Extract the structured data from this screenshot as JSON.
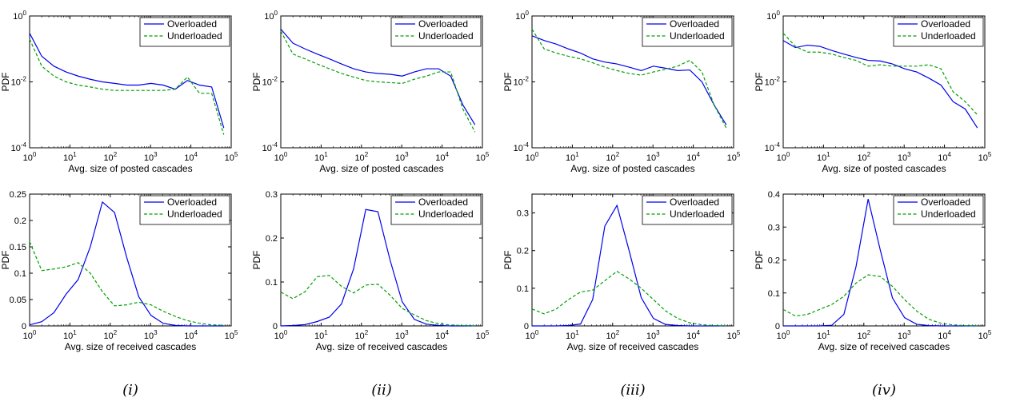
{
  "colors": {
    "overloaded": "#0000ee",
    "underloaded": "#00a000"
  },
  "column_labels": [
    "(i)",
    "(ii)",
    "(iii)",
    "(iv)"
  ],
  "chart_data": [
    {
      "type": "line",
      "xscale": "log",
      "yscale": "log",
      "xlabel": "Avg. size of posted cascades",
      "ylabel": "PDF",
      "xlim": [
        1,
        100000
      ],
      "ylim": [
        0.0001,
        1
      ],
      "xticks": [
        "10^0",
        "10^1",
        "10^2",
        "10^3",
        "10^4",
        "10^5"
      ],
      "yticks": [
        "10^-4",
        "10^-2",
        "10^0"
      ],
      "legend": "top-right",
      "series": [
        {
          "name": "Overloaded",
          "style": "solid",
          "x": [
            1,
            2,
            4,
            8,
            16,
            32,
            64,
            128,
            256,
            512,
            1024,
            2048,
            4096,
            8192,
            16384,
            32768,
            65536
          ],
          "y": [
            0.3,
            0.06,
            0.03,
            0.02,
            0.015,
            0.012,
            0.01,
            0.009,
            0.008,
            0.008,
            0.009,
            0.008,
            0.006,
            0.011,
            0.008,
            0.007,
            0.0004
          ]
        },
        {
          "name": "Underloaded",
          "style": "dashed",
          "x": [
            1,
            2,
            4,
            8,
            16,
            32,
            64,
            128,
            256,
            512,
            1024,
            2048,
            4096,
            8192,
            16384,
            32768,
            65536
          ],
          "y": [
            0.2,
            0.03,
            0.015,
            0.01,
            0.008,
            0.007,
            0.006,
            0.0055,
            0.0055,
            0.0055,
            0.0055,
            0.0055,
            0.006,
            0.014,
            0.0045,
            0.0045,
            0.00025
          ]
        }
      ]
    },
    {
      "type": "line",
      "xscale": "log",
      "yscale": "log",
      "xlabel": "Avg. size of posted cascades",
      "ylabel": "PDF",
      "xlim": [
        1,
        100000
      ],
      "ylim": [
        0.0001,
        1
      ],
      "xticks": [
        "10^0",
        "10^1",
        "10^2",
        "10^3",
        "10^4",
        "10^5"
      ],
      "yticks": [
        "10^-4",
        "10^-2",
        "10^0"
      ],
      "legend": "top-right",
      "series": [
        {
          "name": "Overloaded",
          "style": "solid",
          "x": [
            1,
            2,
            4,
            8,
            16,
            32,
            64,
            128,
            256,
            512,
            1024,
            2048,
            4096,
            8192,
            16384,
            32768,
            65536
          ],
          "y": [
            0.4,
            0.15,
            0.1,
            0.07,
            0.05,
            0.035,
            0.025,
            0.02,
            0.018,
            0.017,
            0.015,
            0.02,
            0.025,
            0.025,
            0.015,
            0.002,
            0.0005
          ]
        },
        {
          "name": "Underloaded",
          "style": "dashed",
          "x": [
            1,
            2,
            4,
            8,
            16,
            32,
            64,
            128,
            256,
            512,
            1024,
            2048,
            4096,
            8192,
            16384,
            32768,
            65536
          ],
          "y": [
            0.35,
            0.07,
            0.05,
            0.035,
            0.025,
            0.018,
            0.014,
            0.011,
            0.01,
            0.0095,
            0.009,
            0.012,
            0.015,
            0.02,
            0.02,
            0.0015,
            0.0003
          ]
        }
      ]
    },
    {
      "type": "line",
      "xscale": "log",
      "yscale": "log",
      "xlabel": "Avg. size of posted cascades",
      "ylabel": "PDF",
      "xlim": [
        1,
        100000
      ],
      "ylim": [
        0.0001,
        1
      ],
      "xticks": [
        "10^0",
        "10^1",
        "10^2",
        "10^3",
        "10^4",
        "10^5"
      ],
      "yticks": [
        "10^-4",
        "10^-2",
        "10^0"
      ],
      "legend": "top-right",
      "series": [
        {
          "name": "Overloaded",
          "style": "solid",
          "x": [
            1,
            2,
            4,
            8,
            16,
            32,
            64,
            128,
            256,
            512,
            1024,
            2048,
            4096,
            8192,
            16384,
            32768,
            65536
          ],
          "y": [
            0.25,
            0.18,
            0.14,
            0.1,
            0.075,
            0.05,
            0.04,
            0.035,
            0.028,
            0.022,
            0.03,
            0.026,
            0.022,
            0.023,
            0.01,
            0.002,
            0.0005
          ]
        },
        {
          "name": "Underloaded",
          "style": "dashed",
          "x": [
            1,
            2,
            4,
            8,
            16,
            32,
            64,
            128,
            256,
            512,
            1024,
            2048,
            4096,
            8192,
            16384,
            32768,
            65536
          ],
          "y": [
            0.4,
            0.1,
            0.075,
            0.06,
            0.05,
            0.038,
            0.028,
            0.022,
            0.018,
            0.016,
            0.02,
            0.024,
            0.03,
            0.045,
            0.02,
            0.002,
            0.0004
          ]
        }
      ]
    },
    {
      "type": "line",
      "xscale": "log",
      "yscale": "log",
      "xlabel": "Avg. size of posted cascades",
      "ylabel": "PDF",
      "xlim": [
        1,
        100000
      ],
      "ylim": [
        0.0001,
        1
      ],
      "xticks": [
        "10^0",
        "10^1",
        "10^2",
        "10^3",
        "10^4",
        "10^5"
      ],
      "yticks": [
        "10^-4",
        "10^-2",
        "10^0"
      ],
      "legend": "top-right",
      "series": [
        {
          "name": "Overloaded",
          "style": "solid",
          "x": [
            1,
            2,
            4,
            8,
            16,
            32,
            64,
            128,
            256,
            512,
            1024,
            2048,
            4096,
            8192,
            16384,
            32768,
            65536
          ],
          "y": [
            0.18,
            0.11,
            0.13,
            0.12,
            0.09,
            0.07,
            0.055,
            0.045,
            0.043,
            0.035,
            0.025,
            0.02,
            0.013,
            0.008,
            0.0025,
            0.0015,
            0.0004
          ]
        },
        {
          "name": "Underloaded",
          "style": "dashed",
          "x": [
            1,
            2,
            4,
            8,
            16,
            32,
            64,
            128,
            256,
            512,
            1024,
            2048,
            4096,
            8192,
            16384,
            32768,
            65536
          ],
          "y": [
            0.3,
            0.12,
            0.08,
            0.08,
            0.07,
            0.055,
            0.045,
            0.03,
            0.033,
            0.03,
            0.03,
            0.03,
            0.033,
            0.025,
            0.005,
            0.0025,
            0.001
          ]
        }
      ]
    },
    {
      "type": "line",
      "xscale": "log",
      "yscale": "linear",
      "xlabel": "Avg. size of received cascades",
      "ylabel": "PDF",
      "xlim": [
        1,
        100000
      ],
      "ylim": [
        0,
        0.25
      ],
      "xticks": [
        "10^0",
        "10^1",
        "10^2",
        "10^3",
        "10^4",
        "10^5"
      ],
      "yticks": [
        "0",
        "0.05",
        "0.1",
        "0.15",
        "0.2",
        "0.25"
      ],
      "legend": "top-right",
      "series": [
        {
          "name": "Overloaded",
          "style": "solid",
          "x": [
            1,
            2,
            4,
            8,
            16,
            32,
            64,
            128,
            256,
            512,
            1024,
            2048,
            4096,
            8192,
            16384,
            32768,
            65536
          ],
          "y": [
            0.002,
            0.008,
            0.025,
            0.06,
            0.088,
            0.15,
            0.235,
            0.215,
            0.13,
            0.055,
            0.02,
            0.005,
            0.001,
            0,
            0,
            0,
            0
          ]
        },
        {
          "name": "Underloaded",
          "style": "dashed",
          "x": [
            1,
            2,
            4,
            8,
            16,
            32,
            64,
            128,
            256,
            512,
            1024,
            2048,
            4096,
            8192,
            16384,
            32768,
            65536
          ],
          "y": [
            0.16,
            0.105,
            0.108,
            0.112,
            0.12,
            0.1,
            0.065,
            0.038,
            0.04,
            0.045,
            0.04,
            0.028,
            0.018,
            0.01,
            0.005,
            0.002,
            0.001
          ]
        }
      ]
    },
    {
      "type": "line",
      "xscale": "log",
      "yscale": "linear",
      "xlabel": "Avg. size of received cascades",
      "ylabel": "PDF",
      "xlim": [
        1,
        100000
      ],
      "ylim": [
        0,
        0.3
      ],
      "xticks": [
        "10^0",
        "10^1",
        "10^2",
        "10^3",
        "10^4",
        "10^5"
      ],
      "yticks": [
        "0",
        "0.1",
        "0.2",
        "0.3"
      ],
      "legend": "top-right",
      "series": [
        {
          "name": "Overloaded",
          "style": "solid",
          "x": [
            1,
            2,
            4,
            8,
            16,
            32,
            64,
            128,
            256,
            512,
            1024,
            2048,
            4096,
            8192,
            16384,
            32768,
            65536
          ],
          "y": [
            0,
            0.001,
            0.003,
            0.01,
            0.02,
            0.05,
            0.13,
            0.265,
            0.26,
            0.15,
            0.055,
            0.015,
            0.004,
            0.001,
            0,
            0,
            0
          ]
        },
        {
          "name": "Underloaded",
          "style": "dashed",
          "x": [
            1,
            2,
            4,
            8,
            16,
            32,
            64,
            128,
            256,
            512,
            1024,
            2048,
            4096,
            8192,
            16384,
            32768,
            65536
          ],
          "y": [
            0.077,
            0.062,
            0.078,
            0.112,
            0.115,
            0.09,
            0.075,
            0.093,
            0.095,
            0.07,
            0.04,
            0.025,
            0.012,
            0.005,
            0.002,
            0.001,
            0
          ]
        }
      ]
    },
    {
      "type": "line",
      "xscale": "log",
      "yscale": "linear",
      "xlabel": "Avg. size of received cascades",
      "ylabel": "PDF",
      "xlim": [
        1,
        100000
      ],
      "ylim": [
        0,
        0.35
      ],
      "xticks": [
        "10^0",
        "10^1",
        "10^2",
        "10^3",
        "10^4",
        "10^5"
      ],
      "yticks": [
        "0",
        "0.1",
        "0.2",
        "0.3"
      ],
      "legend": "top-right",
      "series": [
        {
          "name": "Overloaded",
          "style": "solid",
          "x": [
            1,
            2,
            4,
            8,
            16,
            32,
            64,
            128,
            256,
            512,
            1024,
            2048,
            4096,
            8192,
            16384,
            32768,
            65536
          ],
          "y": [
            0,
            0,
            0,
            0.001,
            0.005,
            0.07,
            0.265,
            0.32,
            0.2,
            0.075,
            0.02,
            0.004,
            0.001,
            0,
            0,
            0,
            0
          ]
        },
        {
          "name": "Underloaded",
          "style": "dashed",
          "x": [
            1,
            2,
            4,
            8,
            16,
            32,
            64,
            128,
            256,
            512,
            1024,
            2048,
            4096,
            8192,
            16384,
            32768,
            65536
          ],
          "y": [
            0.045,
            0.032,
            0.045,
            0.07,
            0.09,
            0.095,
            0.12,
            0.145,
            0.125,
            0.1,
            0.07,
            0.04,
            0.02,
            0.008,
            0.003,
            0.001,
            0
          ]
        }
      ]
    },
    {
      "type": "line",
      "xscale": "log",
      "yscale": "linear",
      "xlabel": "Avg. size of received cascades",
      "ylabel": "PDF",
      "xlim": [
        1,
        100000
      ],
      "ylim": [
        0,
        0.4
      ],
      "xticks": [
        "10^0",
        "10^1",
        "10^2",
        "10^3",
        "10^4",
        "10^5"
      ],
      "yticks": [
        "0",
        "0.1",
        "0.2",
        "0.3",
        "0.4"
      ],
      "legend": "top-right",
      "series": [
        {
          "name": "Overloaded",
          "style": "solid",
          "x": [
            1,
            2,
            4,
            8,
            16,
            32,
            64,
            128,
            256,
            512,
            1024,
            2048,
            4096,
            8192,
            16384,
            32768,
            65536
          ],
          "y": [
            0,
            0,
            0,
            0,
            0.002,
            0.035,
            0.18,
            0.385,
            0.23,
            0.085,
            0.025,
            0.005,
            0.001,
            0,
            0,
            0,
            0
          ]
        },
        {
          "name": "Underloaded",
          "style": "dashed",
          "x": [
            1,
            2,
            4,
            8,
            16,
            32,
            64,
            128,
            256,
            512,
            1024,
            2048,
            4096,
            8192,
            16384,
            32768,
            65536
          ],
          "y": [
            0.05,
            0.03,
            0.035,
            0.05,
            0.065,
            0.09,
            0.13,
            0.155,
            0.15,
            0.12,
            0.08,
            0.045,
            0.02,
            0.008,
            0.003,
            0.001,
            0
          ]
        }
      ]
    }
  ]
}
